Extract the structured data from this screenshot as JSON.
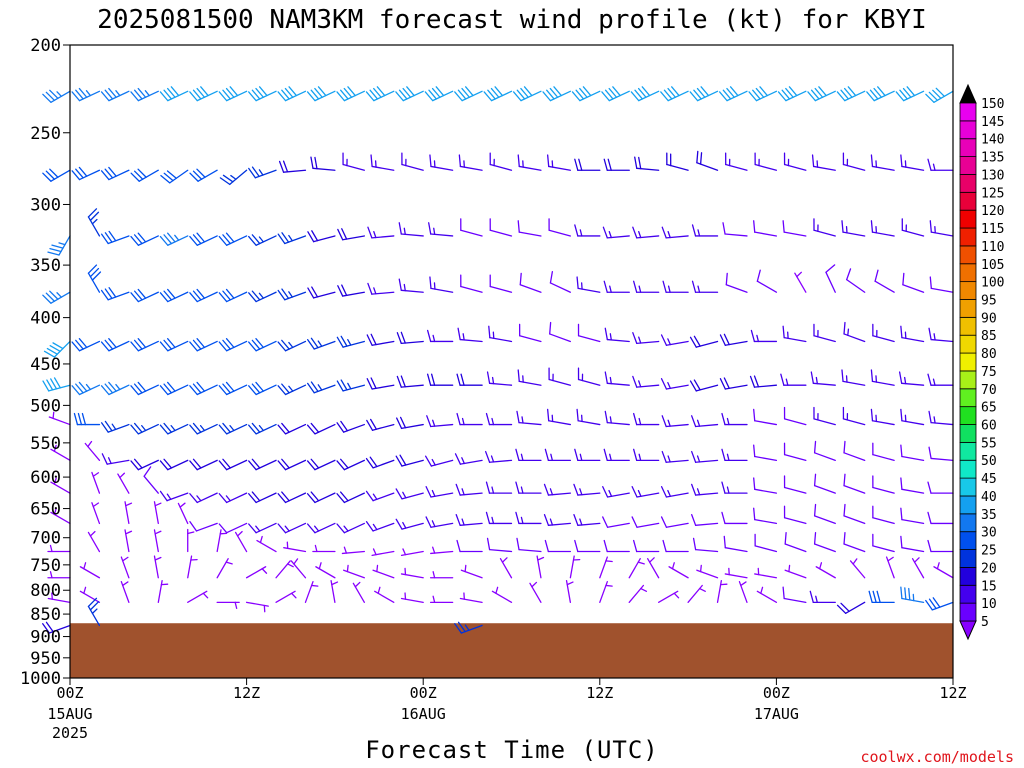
{
  "chart_data": {
    "type": "wind-profile",
    "title": "2025081500 NAM3KM forecast wind profile (kt) for KBYI",
    "xlabel": "Forecast Time (UTC)",
    "watermark": "coolwx.com/models",
    "ylim": [
      1000,
      200
    ],
    "y_scale": "log-pressure",
    "y_ticks": [
      200,
      250,
      300,
      350,
      400,
      450,
      500,
      550,
      600,
      650,
      700,
      750,
      800,
      850,
      900,
      950,
      1000
    ],
    "y_tick_labels": [
      "200",
      "250",
      "300",
      "350",
      "400",
      "450",
      "500",
      "550",
      "600",
      "650",
      "700",
      "750",
      "800",
      "850",
      "900",
      "950",
      "1000"
    ],
    "x_range_hours": [
      0,
      60
    ],
    "x_ticks": [
      {
        "hour": 0,
        "label": "00Z",
        "date": "15AUG",
        "year": "2025"
      },
      {
        "hour": 12,
        "label": "12Z",
        "date": "",
        "year": ""
      },
      {
        "hour": 24,
        "label": "00Z",
        "date": "16AUG",
        "year": ""
      },
      {
        "hour": 36,
        "label": "12Z",
        "date": "",
        "year": ""
      },
      {
        "hour": 48,
        "label": "00Z",
        "date": "17AUG",
        "year": ""
      },
      {
        "hour": 60,
        "label": "12Z",
        "date": "",
        "year": ""
      }
    ],
    "ground_pressure_hpa": 870,
    "ground_color": "#a0522d",
    "colorbar": {
      "levels": [
        "5",
        "10",
        "15",
        "20",
        "25",
        "30",
        "35",
        "40",
        "45",
        "50",
        "55",
        "60",
        "65",
        "70",
        "75",
        "80",
        "85",
        "90",
        "95",
        "100",
        "105",
        "110",
        "115",
        "120",
        "125",
        "130",
        "135",
        "140",
        "145",
        "150"
      ],
      "colors": [
        "#8800ff",
        "#6a00ff",
        "#4400ee",
        "#2200dd",
        "#0033dd",
        "#0050ee",
        "#1278f0",
        "#14a0f0",
        "#18c8e8",
        "#10e8c8",
        "#10e8a0",
        "#10e060",
        "#20e020",
        "#60f020",
        "#a8f018",
        "#f0f000",
        "#f0d800",
        "#f0c000",
        "#f0a000",
        "#f08800",
        "#f07000",
        "#f05000",
        "#f02000",
        "#f00000",
        "#e8003a",
        "#e80068",
        "#e80094",
        "#e800b8",
        "#e800d8",
        "#e800f0"
      ]
    },
    "forecast_hours": [
      0,
      2,
      4,
      6,
      8,
      10,
      12,
      14,
      16,
      18,
      20,
      22,
      24,
      26,
      28,
      30,
      32,
      34,
      36,
      38,
      40,
      42,
      44,
      46,
      48,
      50,
      52,
      54,
      56,
      58,
      60
    ],
    "levels_hpa": [
      225,
      275,
      325,
      375,
      425,
      475,
      525,
      575,
      625,
      675,
      725,
      775,
      825,
      875
    ],
    "wind_barbs": [
      {
        "level": 225,
        "directions_deg": [
          240,
          245,
          245,
          245,
          245,
          245,
          245,
          245,
          245,
          245,
          245,
          245,
          245,
          245,
          245,
          245,
          245,
          245,
          245,
          245,
          245,
          245,
          245,
          245,
          245,
          245,
          245,
          245,
          245,
          245,
          240
        ],
        "speeds_kt": [
          35,
          35,
          35,
          35,
          40,
          40,
          40,
          40,
          40,
          40,
          40,
          40,
          40,
          40,
          40,
          40,
          40,
          40,
          40,
          40,
          40,
          40,
          40,
          40,
          40,
          40,
          40,
          40,
          40,
          40,
          40
        ]
      },
      {
        "level": 275,
        "directions_deg": [
          240,
          245,
          245,
          240,
          235,
          240,
          230,
          250,
          265,
          275,
          285,
          280,
          285,
          280,
          280,
          285,
          280,
          280,
          270,
          270,
          275,
          285,
          290,
          285,
          285,
          285,
          280,
          285,
          280,
          280,
          270
        ],
        "speeds_kt": [
          30,
          30,
          30,
          30,
          30,
          30,
          25,
          25,
          20,
          20,
          15,
          15,
          15,
          15,
          15,
          15,
          15,
          15,
          20,
          20,
          20,
          20,
          20,
          15,
          15,
          15,
          15,
          15,
          15,
          15,
          15
        ]
      },
      {
        "level": 325,
        "directions_deg": [
          210,
          330,
          250,
          245,
          245,
          245,
          245,
          245,
          250,
          255,
          260,
          265,
          275,
          275,
          285,
          285,
          280,
          285,
          270,
          265,
          265,
          265,
          270,
          275,
          280,
          280,
          285,
          280,
          280,
          285,
          280
        ],
        "speeds_kt": [
          35,
          25,
          30,
          30,
          35,
          30,
          30,
          25,
          25,
          20,
          20,
          15,
          15,
          15,
          10,
          10,
          10,
          10,
          15,
          15,
          15,
          15,
          15,
          10,
          10,
          10,
          15,
          15,
          15,
          15,
          15
        ]
      },
      {
        "level": 375,
        "directions_deg": [
          240,
          330,
          250,
          245,
          245,
          245,
          245,
          245,
          250,
          255,
          260,
          265,
          275,
          280,
          285,
          285,
          290,
          295,
          280,
          270,
          270,
          270,
          270,
          290,
          300,
          330,
          335,
          305,
          300,
          290,
          280
        ],
        "speeds_kt": [
          35,
          30,
          30,
          30,
          30,
          30,
          30,
          25,
          25,
          20,
          20,
          15,
          15,
          15,
          10,
          10,
          10,
          10,
          15,
          15,
          15,
          15,
          15,
          10,
          10,
          5,
          10,
          10,
          10,
          10,
          10
        ]
      },
      {
        "level": 425,
        "directions_deg": [
          225,
          245,
          245,
          245,
          245,
          245,
          245,
          245,
          245,
          250,
          255,
          260,
          265,
          270,
          275,
          280,
          285,
          290,
          285,
          275,
          265,
          260,
          255,
          260,
          270,
          280,
          285,
          290,
          285,
          280,
          275
        ],
        "speeds_kt": [
          40,
          30,
          30,
          30,
          30,
          30,
          30,
          30,
          25,
          25,
          25,
          20,
          20,
          15,
          15,
          15,
          10,
          10,
          10,
          15,
          15,
          15,
          20,
          20,
          15,
          15,
          15,
          15,
          15,
          15,
          15
        ]
      },
      {
        "level": 475,
        "directions_deg": [
          255,
          245,
          245,
          245,
          245,
          245,
          245,
          245,
          245,
          250,
          255,
          260,
          265,
          270,
          270,
          275,
          280,
          285,
          285,
          275,
          265,
          260,
          255,
          260,
          265,
          270,
          275,
          280,
          280,
          275,
          270
        ],
        "speeds_kt": [
          40,
          35,
          35,
          30,
          30,
          30,
          30,
          30,
          25,
          25,
          25,
          20,
          20,
          20,
          20,
          15,
          15,
          15,
          15,
          15,
          15,
          15,
          20,
          20,
          20,
          15,
          15,
          15,
          15,
          15,
          15
        ]
      },
      {
        "level": 525,
        "directions_deg": [
          290,
          270,
          250,
          245,
          245,
          245,
          245,
          245,
          245,
          245,
          250,
          255,
          260,
          265,
          270,
          270,
          275,
          280,
          280,
          275,
          270,
          265,
          265,
          270,
          280,
          285,
          285,
          285,
          280,
          280,
          275
        ],
        "speeds_kt": [
          5,
          30,
          25,
          25,
          25,
          25,
          25,
          25,
          20,
          20,
          20,
          20,
          20,
          15,
          15,
          15,
          15,
          15,
          15,
          15,
          15,
          15,
          15,
          15,
          10,
          10,
          15,
          15,
          15,
          15,
          15
        ]
      },
      {
        "level": 575,
        "directions_deg": [
          300,
          320,
          260,
          245,
          245,
          245,
          245,
          245,
          245,
          245,
          245,
          250,
          255,
          255,
          260,
          265,
          270,
          270,
          270,
          270,
          270,
          265,
          265,
          270,
          280,
          285,
          290,
          290,
          285,
          280,
          275
        ],
        "speeds_kt": [
          5,
          5,
          15,
          20,
          20,
          20,
          20,
          20,
          20,
          20,
          20,
          20,
          20,
          15,
          15,
          15,
          15,
          15,
          15,
          15,
          15,
          15,
          15,
          15,
          10,
          10,
          10,
          10,
          10,
          10,
          10
        ]
      },
      {
        "level": 625,
        "directions_deg": [
          300,
          340,
          330,
          320,
          250,
          245,
          245,
          245,
          245,
          245,
          245,
          250,
          255,
          260,
          265,
          270,
          270,
          265,
          265,
          260,
          260,
          260,
          265,
          270,
          280,
          285,
          290,
          290,
          285,
          280,
          270
        ],
        "speeds_kt": [
          5,
          5,
          5,
          10,
          15,
          15,
          15,
          20,
          20,
          20,
          20,
          15,
          15,
          15,
          15,
          15,
          15,
          15,
          15,
          15,
          15,
          15,
          15,
          15,
          10,
          10,
          10,
          10,
          10,
          10,
          10
        ]
      },
      {
        "level": 675,
        "directions_deg": [
          300,
          340,
          350,
          350,
          335,
          250,
          245,
          245,
          245,
          245,
          245,
          250,
          255,
          260,
          265,
          270,
          270,
          265,
          265,
          260,
          260,
          260,
          265,
          270,
          280,
          285,
          290,
          290,
          285,
          280,
          270
        ],
        "speeds_kt": [
          5,
          5,
          5,
          5,
          5,
          10,
          10,
          15,
          15,
          15,
          15,
          15,
          15,
          15,
          15,
          15,
          15,
          15,
          15,
          10,
          10,
          10,
          10,
          10,
          10,
          10,
          10,
          10,
          10,
          10,
          10
        ]
      },
      {
        "level": 725,
        "directions_deg": [
          270,
          330,
          350,
          350,
          0,
          10,
          330,
          300,
          280,
          270,
          265,
          260,
          260,
          265,
          270,
          275,
          275,
          270,
          270,
          270,
          270,
          270,
          275,
          280,
          285,
          290,
          290,
          290,
          285,
          280,
          270
        ],
        "speeds_kt": [
          5,
          5,
          5,
          5,
          5,
          5,
          5,
          5,
          5,
          5,
          5,
          5,
          5,
          5,
          10,
          10,
          10,
          10,
          10,
          10,
          10,
          10,
          10,
          10,
          10,
          10,
          10,
          10,
          10,
          10,
          10
        ]
      },
      {
        "level": 775,
        "directions_deg": [
          270,
          300,
          340,
          350,
          10,
          30,
          60,
          40,
          320,
          300,
          290,
          290,
          280,
          270,
          290,
          330,
          350,
          10,
          20,
          30,
          330,
          300,
          290,
          280,
          280,
          290,
          300,
          320,
          340,
          330,
          300
        ],
        "speeds_kt": [
          5,
          5,
          5,
          5,
          5,
          5,
          5,
          5,
          5,
          5,
          5,
          5,
          5,
          5,
          5,
          5,
          5,
          5,
          5,
          5,
          5,
          5,
          5,
          5,
          5,
          5,
          5,
          5,
          5,
          5,
          5
        ]
      },
      {
        "level": 825,
        "directions_deg": [
          280,
          300,
          340,
          10,
          60,
          90,
          100,
          60,
          20,
          350,
          330,
          300,
          280,
          270,
          280,
          300,
          330,
          350,
          20,
          40,
          60,
          40,
          10,
          340,
          300,
          280,
          270,
          240,
          270,
          280,
          250
        ],
        "speeds_kt": [
          5,
          5,
          5,
          5,
          5,
          5,
          5,
          5,
          5,
          5,
          5,
          5,
          5,
          5,
          5,
          5,
          5,
          5,
          5,
          5,
          5,
          5,
          5,
          5,
          5,
          10,
          15,
          20,
          30,
          35,
          30
        ]
      },
      {
        "level": 875,
        "directions_deg": [
          250,
          330,
          0,
          0,
          0,
          0,
          0,
          0,
          0,
          0,
          0,
          0,
          0,
          0,
          250,
          0,
          0,
          0,
          0,
          0,
          0,
          0,
          0,
          0,
          0,
          0,
          0,
          0,
          0,
          0,
          0
        ],
        "speeds_kt": [
          20,
          25,
          0,
          0,
          0,
          0,
          0,
          0,
          0,
          0,
          0,
          0,
          0,
          0,
          25,
          0,
          0,
          0,
          0,
          0,
          0,
          0,
          0,
          0,
          0,
          0,
          0,
          0,
          0,
          0,
          0
        ]
      }
    ]
  }
}
